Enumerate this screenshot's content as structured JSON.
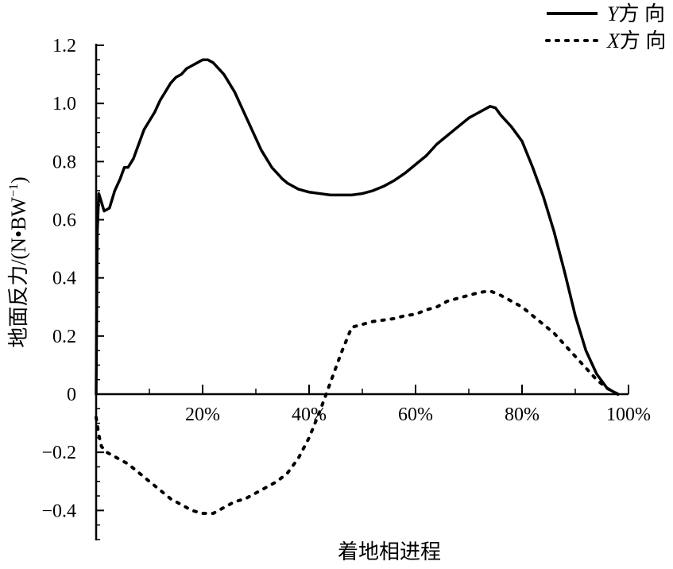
{
  "chart_data": {
    "type": "line",
    "title": "",
    "xlabel": "着地相进程",
    "ylabel_main": "地面反力/(N•BW",
    "ylabel_sup": "−1",
    "ylabel_close": ")",
    "xlim": [
      0,
      100
    ],
    "ylim": [
      -0.5,
      1.2
    ],
    "x_ticks": [
      {
        "value": 20,
        "label": "20%"
      },
      {
        "value": 40,
        "label": "40%"
      },
      {
        "value": 60,
        "label": "60%"
      },
      {
        "value": 80,
        "label": "80%"
      },
      {
        "value": 100,
        "label": "100%"
      }
    ],
    "x_minor_step": 10,
    "y_ticks": [
      {
        "value": 1.2,
        "label": "1.2"
      },
      {
        "value": 1.0,
        "label": "1.0"
      },
      {
        "value": 0.8,
        "label": "0.8"
      },
      {
        "value": 0.6,
        "label": "0.6"
      },
      {
        "value": 0.4,
        "label": "0.4"
      },
      {
        "value": 0.2,
        "label": "0.2"
      },
      {
        "value": 0,
        "label": "0"
      },
      {
        "value": -0.2,
        "label": "−0.2"
      },
      {
        "value": -0.4,
        "label": "−0.4"
      }
    ],
    "y_minor_step": 0.05,
    "legend_position": "top-right",
    "series": [
      {
        "name_var": "Y",
        "name_text": "方 向",
        "style": "solid",
        "color": "#000000",
        "points": [
          [
            0,
            0
          ],
          [
            0.2,
            0.55
          ],
          [
            0.5,
            0.69
          ],
          [
            1,
            0.66
          ],
          [
            1.5,
            0.63
          ],
          [
            2.5,
            0.64
          ],
          [
            3.5,
            0.7
          ],
          [
            4.5,
            0.74
          ],
          [
            5.3,
            0.78
          ],
          [
            6,
            0.78
          ],
          [
            7,
            0.81
          ],
          [
            8,
            0.86
          ],
          [
            9,
            0.91
          ],
          [
            10,
            0.94
          ],
          [
            11,
            0.97
          ],
          [
            12,
            1.01
          ],
          [
            13,
            1.04
          ],
          [
            14,
            1.07
          ],
          [
            15,
            1.09
          ],
          [
            16,
            1.1
          ],
          [
            17,
            1.12
          ],
          [
            18,
            1.13
          ],
          [
            19,
            1.14
          ],
          [
            20,
            1.15
          ],
          [
            21,
            1.15
          ],
          [
            22,
            1.14
          ],
          [
            23,
            1.12
          ],
          [
            24,
            1.1
          ],
          [
            25,
            1.07
          ],
          [
            26,
            1.04
          ],
          [
            27,
            1.0
          ],
          [
            28,
            0.96
          ],
          [
            29,
            0.92
          ],
          [
            30,
            0.88
          ],
          [
            31,
            0.84
          ],
          [
            32,
            0.81
          ],
          [
            33,
            0.78
          ],
          [
            34,
            0.76
          ],
          [
            35,
            0.74
          ],
          [
            36,
            0.725
          ],
          [
            38,
            0.705
          ],
          [
            40,
            0.695
          ],
          [
            42,
            0.69
          ],
          [
            44,
            0.685
          ],
          [
            46,
            0.685
          ],
          [
            48,
            0.685
          ],
          [
            50,
            0.69
          ],
          [
            52,
            0.7
          ],
          [
            54,
            0.715
          ],
          [
            56,
            0.735
          ],
          [
            58,
            0.76
          ],
          [
            60,
            0.79
          ],
          [
            62,
            0.82
          ],
          [
            64,
            0.86
          ],
          [
            66,
            0.89
          ],
          [
            68,
            0.92
          ],
          [
            70,
            0.95
          ],
          [
            72,
            0.97
          ],
          [
            74,
            0.99
          ],
          [
            75,
            0.985
          ],
          [
            76,
            0.96
          ],
          [
            78,
            0.92
          ],
          [
            80,
            0.87
          ],
          [
            82,
            0.78
          ],
          [
            84,
            0.68
          ],
          [
            86,
            0.56
          ],
          [
            88,
            0.42
          ],
          [
            90,
            0.27
          ],
          [
            92,
            0.15
          ],
          [
            94,
            0.07
          ],
          [
            96,
            0.02
          ],
          [
            98,
            0
          ]
        ]
      },
      {
        "name_var": "X",
        "name_text": "方 向",
        "style": "dotted",
        "color": "#000000",
        "points": [
          [
            0,
            -0.08
          ],
          [
            0.5,
            -0.14
          ],
          [
            1,
            -0.18
          ],
          [
            2,
            -0.2
          ],
          [
            4,
            -0.22
          ],
          [
            6,
            -0.24
          ],
          [
            8,
            -0.27
          ],
          [
            10,
            -0.3
          ],
          [
            12,
            -0.33
          ],
          [
            14,
            -0.36
          ],
          [
            16,
            -0.38
          ],
          [
            18,
            -0.4
          ],
          [
            20,
            -0.41
          ],
          [
            22,
            -0.41
          ],
          [
            24,
            -0.39
          ],
          [
            26,
            -0.37
          ],
          [
            28,
            -0.36
          ],
          [
            30,
            -0.34
          ],
          [
            32,
            -0.32
          ],
          [
            34,
            -0.3
          ],
          [
            36,
            -0.27
          ],
          [
            38,
            -0.22
          ],
          [
            40,
            -0.15
          ],
          [
            42,
            -0.06
          ],
          [
            44,
            0.04
          ],
          [
            46,
            0.14
          ],
          [
            48,
            0.23
          ],
          [
            50,
            0.24
          ],
          [
            52,
            0.25
          ],
          [
            54,
            0.255
          ],
          [
            56,
            0.26
          ],
          [
            58,
            0.27
          ],
          [
            60,
            0.275
          ],
          [
            62,
            0.29
          ],
          [
            64,
            0.3
          ],
          [
            66,
            0.32
          ],
          [
            68,
            0.33
          ],
          [
            70,
            0.34
          ],
          [
            72,
            0.35
          ],
          [
            74,
            0.355
          ],
          [
            76,
            0.34
          ],
          [
            78,
            0.32
          ],
          [
            80,
            0.3
          ],
          [
            82,
            0.27
          ],
          [
            84,
            0.24
          ],
          [
            86,
            0.21
          ],
          [
            88,
            0.17
          ],
          [
            90,
            0.13
          ],
          [
            92,
            0.09
          ],
          [
            94,
            0.05
          ],
          [
            96,
            0.02
          ],
          [
            98,
            0
          ]
        ]
      }
    ]
  }
}
